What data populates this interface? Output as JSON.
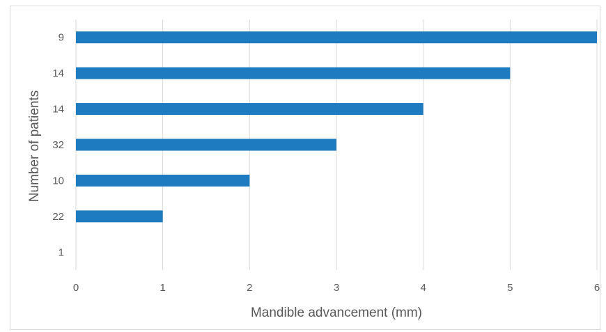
{
  "chart_data": {
    "type": "bar",
    "orientation": "horizontal",
    "categories": [
      "1",
      "22",
      "10",
      "32",
      "14",
      "14",
      "9"
    ],
    "values": [
      0,
      1,
      2,
      3,
      4,
      5,
      6
    ],
    "title": "",
    "xlabel": "Mandible advancement (mm)",
    "ylabel": "Number of patients",
    "xlim": [
      0,
      6
    ],
    "xticks": [
      "0",
      "1",
      "2",
      "3",
      "4",
      "5",
      "6"
    ],
    "grid": "vertical",
    "legend": "none",
    "bar_color": "#1f7bbf",
    "grid_color": "#d9d9d9"
  }
}
